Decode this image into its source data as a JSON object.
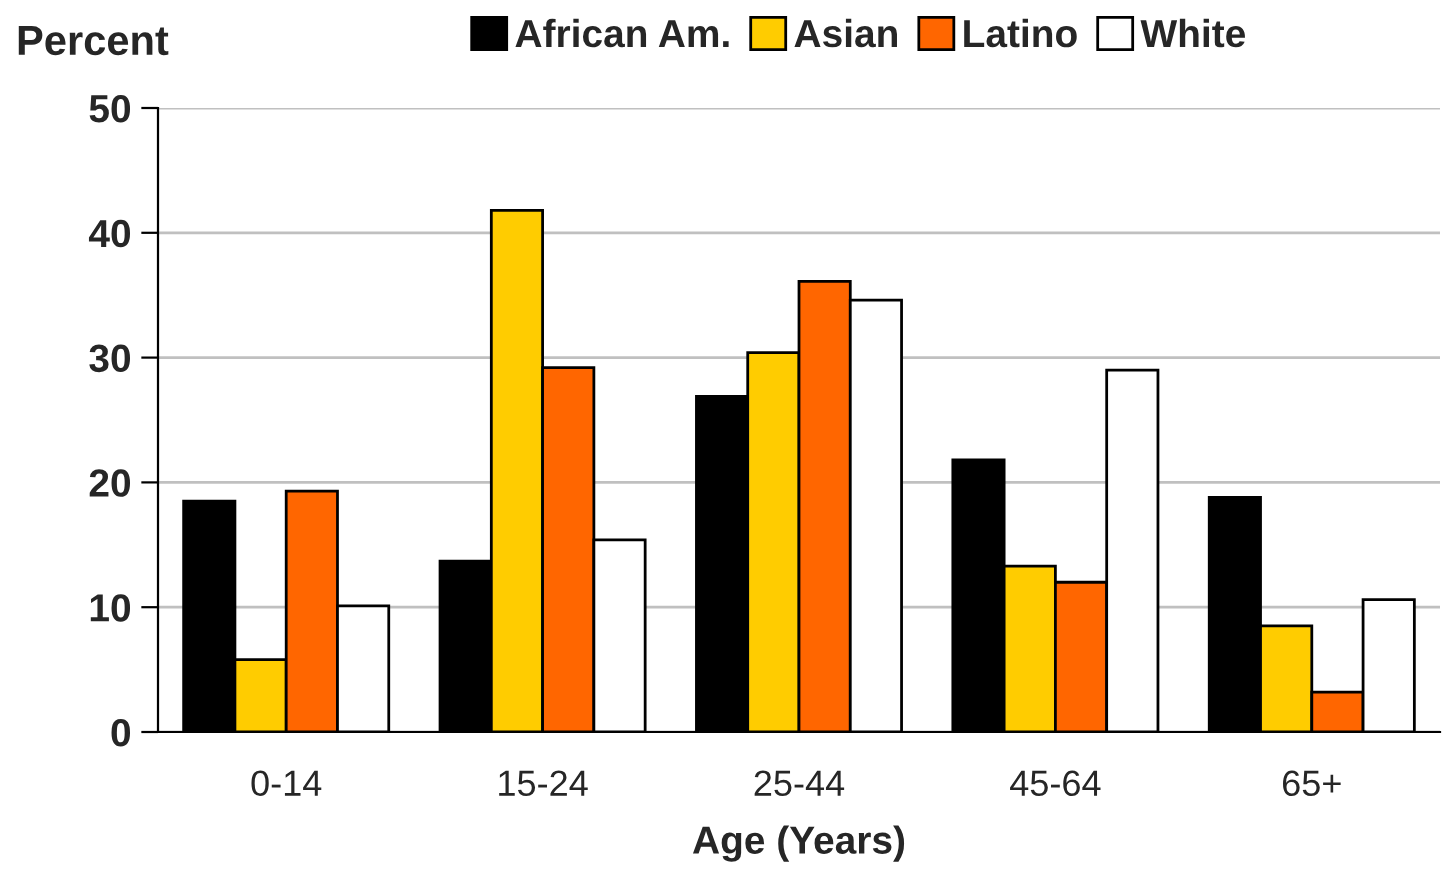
{
  "chart_data": {
    "type": "bar",
    "ylabel": "Percent",
    "xlabel": "Age (Years)",
    "categories": [
      "0-14",
      "15-24",
      "25-44",
      "45-64",
      "65+"
    ],
    "series": [
      {
        "name": "African Am.",
        "color": "#000000",
        "values": [
          18.5,
          13.7,
          26.9,
          21.8,
          18.8
        ]
      },
      {
        "name": "Asian",
        "color": "#ffcc00",
        "values": [
          5.8,
          41.8,
          30.4,
          13.3,
          8.5
        ]
      },
      {
        "name": "Latino",
        "color": "#ff6600",
        "values": [
          19.3,
          29.2,
          36.1,
          12.0,
          3.2
        ]
      },
      {
        "name": "White",
        "color": "#ffffff",
        "values": [
          10.1,
          15.4,
          34.6,
          29.0,
          10.6
        ]
      }
    ],
    "ylim": [
      0,
      50
    ],
    "yticks": [
      0,
      10,
      20,
      30,
      40,
      50
    ],
    "grid": "y",
    "legend": "top"
  }
}
